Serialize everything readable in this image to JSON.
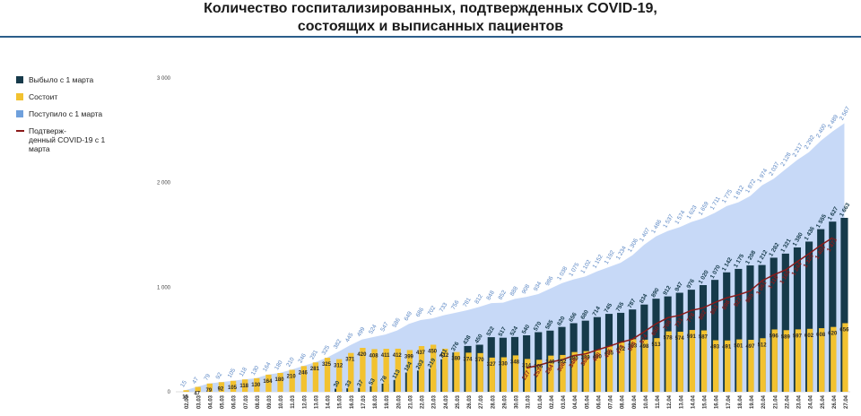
{
  "title": {
    "line1": "Количество госпитализированных, подтвержденных COVID-19,",
    "line2": "состоящих и выписанных пациентов"
  },
  "colors": {
    "discharged": "#163a4a",
    "current": "#f2c230",
    "admitted": "#c7d9f7",
    "admitted_legend": "#6fa0dc",
    "confirmed": "#8b1a1a",
    "rule": "#2b5d8a"
  },
  "legend": [
    {
      "key": "discharged",
      "label": "Выбыло с 1 марта",
      "kind": "box"
    },
    {
      "key": "current",
      "label": "Состоит",
      "kind": "box"
    },
    {
      "key": "admitted_legend",
      "label": "Поступило с 1 марта",
      "kind": "box"
    },
    {
      "key": "confirmed",
      "label": "Подтверж-\nденный COVID-19 с 1\nмарта",
      "kind": "line"
    }
  ],
  "chart_data": {
    "type": "bar",
    "title": "Количество госпитализированных, подтвержденных COVID-19, состоящих и выписанных пациентов",
    "ylim": [
      0,
      3000
    ],
    "yticks": [
      0,
      1000,
      2000,
      3000
    ],
    "ytick_labels": [
      "0",
      "1 000",
      "2 000",
      "3 000"
    ],
    "grid": false,
    "legend_position": "left",
    "categories": [
      "02.03",
      "03.03",
      "04.03",
      "05.03",
      "06.03",
      "07.03",
      "08.03",
      "09.03",
      "10.03",
      "11.03",
      "12.03",
      "13.03",
      "14.03",
      "15.03",
      "16.03",
      "17.03",
      "18.03",
      "19.03",
      "20.03",
      "21.03",
      "22.03",
      "23.03",
      "24.03",
      "25.03",
      "26.03",
      "27.03",
      "28.03",
      "29.03",
      "30.03",
      "31.03",
      "01.04",
      "02.04",
      "03.04",
      "04.04",
      "05.04",
      "06.04",
      "07.04",
      "08.04",
      "09.04",
      "10.04",
      "11.04",
      "12.04",
      "13.04",
      "14.04",
      "15.04",
      "16.04",
      "17.04",
      "18.04",
      "19.04",
      "20.04",
      "21.04",
      "22.04",
      "23.04",
      "24.04",
      "25.04",
      "26.04",
      "27.04"
    ],
    "series": [
      {
        "name": "Поступило с 1 марта",
        "type": "area",
        "values": [
          15,
          47,
          79,
          92,
          105,
          118,
          130,
          164,
          180,
          210,
          246,
          281,
          325,
          382,
          445,
          499,
          524,
          547,
          586,
          649,
          686,
          702,
          733,
          756,
          781,
          812,
          848,
          852,
          888,
          908,
          934,
          986,
          1038,
          1075,
          1102,
          1152,
          1192,
          1234,
          1306,
          1407,
          1486,
          1537,
          1574,
          1623,
          1659,
          1711,
          1775,
          1812,
          1872,
          1974,
          2037,
          2128,
          2217,
          2292,
          2400,
          2489,
          2567
        ]
      },
      {
        "name": "Выбыло с 1 марта",
        "type": "bar",
        "values": [
          0,
          0,
          0,
          0,
          0,
          0,
          0,
          0,
          0,
          0,
          0,
          0,
          0,
          30,
          33,
          37,
          53,
          78,
          113,
          184,
          203,
          219,
          311,
          376,
          438,
          450,
          522,
          517,
          524,
          540,
          570,
          585,
          620,
          656,
          680,
          714,
          745,
          755,
          787,
          834,
          890,
          912,
          947,
          976,
          1020,
          1070,
          1142,
          1175,
          1208,
          1212,
          1282,
          1321,
          1380,
          1436,
          1555,
          1627,
          1663
        ]
      },
      {
        "name": "Состоит",
        "type": "bar",
        "values": [
          15,
          47,
          79,
          92,
          105,
          118,
          130,
          164,
          180,
          210,
          246,
          281,
          325,
          312,
          371,
          420,
          408,
          411,
          412,
          399,
          437,
          450,
          412,
          380,
          374,
          370,
          327,
          330,
          348,
          314,
          306,
          346,
          352,
          380,
          389,
          400,
          435,
          472,
          503,
          498,
          513,
          578,
          574,
          591,
          587,
          493,
          491,
          501,
          497,
          512,
          596,
          589,
          597,
          602,
          608,
          620,
          656
        ]
      },
      {
        "name": "Подтверж-денный COVID-19 с 1 марта",
        "type": "line",
        "values": [
          null,
          null,
          null,
          null,
          null,
          null,
          null,
          null,
          null,
          null,
          null,
          null,
          null,
          null,
          null,
          null,
          null,
          null,
          null,
          null,
          null,
          null,
          null,
          null,
          null,
          null,
          null,
          null,
          null,
          227,
          253,
          284,
          306,
          346,
          362,
          400,
          435,
          473,
          503,
          574,
          650,
          708,
          731,
          778,
          802,
          853,
          898,
          927,
          965,
          1061,
          1118,
          1165,
          1244,
          1320,
          1402,
          1473,
          null
        ]
      }
    ]
  }
}
